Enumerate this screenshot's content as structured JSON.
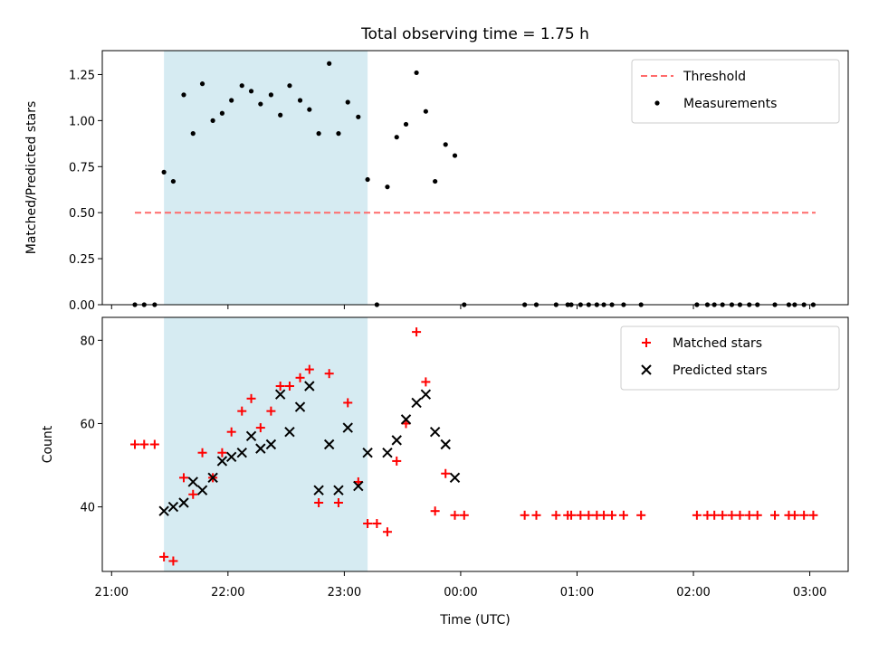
{
  "figure": {
    "title": "Total observing time = 1.75 h"
  },
  "chart_data": [
    {
      "type": "scatter",
      "ylabel": "Matched/Predicted stars",
      "xlim": [
        20.92,
        27.33
      ],
      "ylim": [
        0,
        1.38
      ],
      "yticks": [
        0.0,
        0.25,
        0.5,
        0.75,
        1.0,
        1.25
      ],
      "ytick_labels": [
        "0.00",
        "0.25",
        "0.50",
        "0.75",
        "1.00",
        "1.25"
      ],
      "legend_position": "upper right",
      "highlight_span": {
        "x": [
          21.45,
          23.2
        ],
        "color": "#add8e6"
      },
      "threshold": {
        "name": "Threshold",
        "value": 0.5,
        "x": [
          21.2,
          27.05
        ],
        "color": "#ff6b6b"
      },
      "series": [
        {
          "name": "Measurements",
          "color": "#000000",
          "x": [
            21.2,
            21.28,
            21.37,
            21.45,
            21.53,
            21.62,
            21.7,
            21.78,
            21.87,
            21.95,
            22.03,
            22.12,
            22.2,
            22.28,
            22.37,
            22.45,
            22.53,
            22.62,
            22.7,
            22.78,
            22.87,
            22.95,
            23.03,
            23.12,
            23.2,
            23.28,
            23.37,
            23.45,
            23.53,
            23.62,
            23.7,
            23.78,
            23.87,
            23.95,
            24.03,
            24.55,
            24.65,
            24.82,
            24.92,
            24.95,
            25.03,
            25.1,
            25.17,
            25.23,
            25.3,
            25.4,
            25.55,
            26.03,
            26.12,
            26.18,
            26.25,
            26.33,
            26.4,
            26.48,
            26.55,
            26.7,
            26.82,
            26.87,
            26.95,
            27.03
          ],
          "y": [
            0,
            0,
            0,
            0.72,
            0.67,
            1.14,
            0.93,
            1.2,
            1.0,
            1.04,
            1.11,
            1.19,
            1.16,
            1.09,
            1.14,
            1.03,
            1.19,
            1.11,
            1.06,
            0.93,
            1.31,
            0.93,
            1.1,
            1.02,
            0.68,
            0,
            0.64,
            0.91,
            0.98,
            1.26,
            1.05,
            0.67,
            0.87,
            0.81,
            0,
            0,
            0,
            0,
            0,
            0,
            0,
            0,
            0,
            0,
            0,
            0,
            0,
            0,
            0,
            0,
            0,
            0,
            0,
            0,
            0,
            0,
            0,
            0,
            0,
            0
          ]
        }
      ]
    },
    {
      "type": "scatter",
      "xlabel": "Time (UTC)",
      "ylabel": "Count",
      "xlim": [
        20.92,
        27.33
      ],
      "ylim": [
        24.5,
        85.5
      ],
      "xticks": [
        21,
        22,
        23,
        24,
        25,
        26,
        27
      ],
      "xtick_labels": [
        "21:00",
        "22:00",
        "23:00",
        "00:00",
        "01:00",
        "02:00",
        "03:00"
      ],
      "yticks": [
        40,
        60,
        80
      ],
      "ytick_labels": [
        "40",
        "60",
        "80"
      ],
      "legend_position": "upper right",
      "highlight_span": {
        "x": [
          21.45,
          23.2
        ],
        "color": "#add8e6"
      },
      "series": [
        {
          "name": "Matched stars",
          "marker": "plus",
          "color": "#ff0000",
          "x": [
            21.2,
            21.28,
            21.37,
            21.45,
            21.53,
            21.62,
            21.7,
            21.78,
            21.87,
            21.95,
            22.03,
            22.12,
            22.2,
            22.28,
            22.37,
            22.45,
            22.53,
            22.62,
            22.7,
            22.78,
            22.87,
            22.95,
            23.03,
            23.12,
            23.2,
            23.28,
            23.37,
            23.45,
            23.53,
            23.62,
            23.7,
            23.78,
            23.87,
            23.95,
            24.03,
            24.55,
            24.65,
            24.82,
            24.92,
            24.95,
            25.03,
            25.1,
            25.17,
            25.23,
            25.3,
            25.4,
            25.55,
            26.03,
            26.12,
            26.18,
            26.25,
            26.33,
            26.4,
            26.48,
            26.55,
            26.7,
            26.82,
            26.87,
            26.95,
            27.03
          ],
          "y": [
            55,
            55,
            55,
            28,
            27,
            47,
            43,
            53,
            47,
            53,
            58,
            63,
            66,
            59,
            63,
            69,
            69,
            71,
            73,
            41,
            72,
            41,
            65,
            46,
            36,
            36,
            34,
            51,
            60,
            82,
            70,
            39,
            48,
            38,
            38,
            38,
            38,
            38,
            38,
            38,
            38,
            38,
            38,
            38,
            38,
            38,
            38,
            38,
            38,
            38,
            38,
            38,
            38,
            38,
            38,
            38,
            38,
            38,
            38,
            38
          ]
        },
        {
          "name": "Predicted stars",
          "marker": "x",
          "color": "#000000",
          "x": [
            21.45,
            21.53,
            21.62,
            21.7,
            21.78,
            21.87,
            21.95,
            22.03,
            22.12,
            22.2,
            22.28,
            22.37,
            22.45,
            22.53,
            22.62,
            22.7,
            22.78,
            22.87,
            22.95,
            23.03,
            23.12,
            23.2,
            23.37,
            23.45,
            23.53,
            23.62,
            23.7,
            23.78,
            23.87,
            23.95
          ],
          "y": [
            39,
            40,
            41,
            46,
            44,
            47,
            51,
            52,
            53,
            57,
            54,
            55,
            67,
            58,
            64,
            69,
            44,
            55,
            44,
            59,
            45,
            53,
            53,
            56,
            61,
            65,
            67,
            58,
            55,
            47
          ]
        }
      ]
    }
  ]
}
